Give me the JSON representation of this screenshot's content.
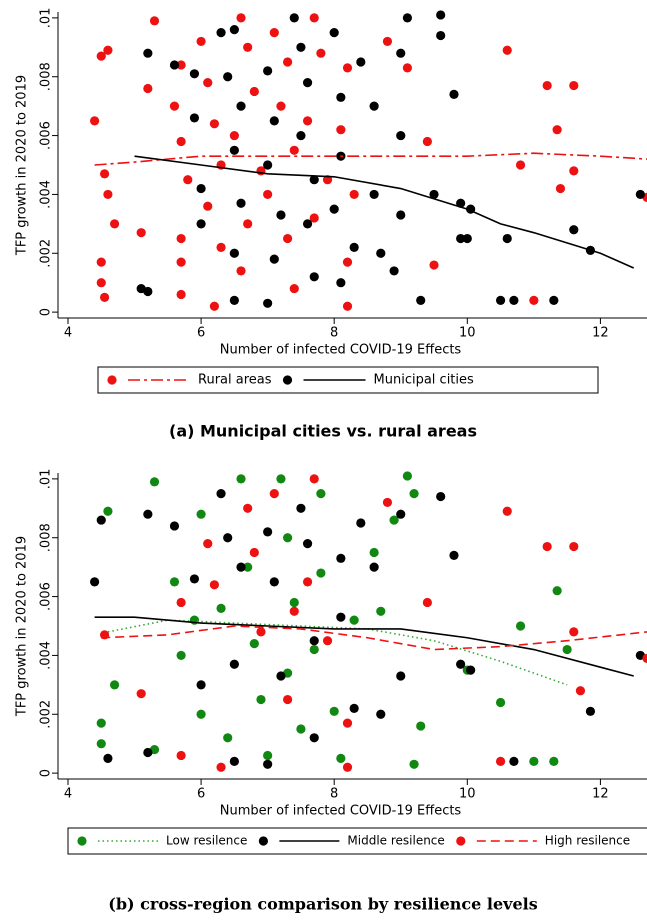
{
  "chart_data": [
    {
      "type": "scatter",
      "xlabel": "Number of infected COVID-19 Effects",
      "ylabel": "TFP growth in 2020 to 2019",
      "caption": "(a)  Municipal cities vs. rural areas",
      "xlim": [
        3.85,
        12.7
      ],
      "ylim": [
        -0.0002,
        0.0102
      ],
      "xticks": [
        4,
        6,
        8,
        10,
        12
      ],
      "yticks": [
        0,
        {
          "value": 0.002,
          "label": ".002"
        },
        {
          "value": 0.004,
          "label": ".004"
        },
        {
          "value": 0.006,
          "label": ".006"
        },
        {
          "value": 0.008,
          "label": ".008"
        },
        {
          "value": 0.01,
          "label": ".01"
        }
      ],
      "legend_position": "bottom",
      "series": [
        {
          "type": "scatter",
          "color": "#ee1111",
          "x": [
            4.4,
            4.5,
            4.6,
            4.55,
            4.5,
            4.5,
            4.55,
            4.6,
            4.7,
            5.3,
            5.2,
            5.1,
            5.7,
            5.6,
            5.7,
            5.8,
            5.7,
            5.7,
            5.7,
            6.0,
            6.1,
            6.2,
            6.3,
            6.1,
            6.3,
            6.2,
            6.6,
            6.7,
            6.8,
            6.5,
            6.9,
            6.7,
            6.6,
            7.1,
            7.3,
            7.2,
            7.4,
            7.0,
            7.3,
            7.4,
            7.7,
            7.8,
            7.6,
            7.9,
            7.7,
            8.2,
            8.1,
            8.3,
            8.2,
            8.2,
            8.8,
            9.1,
            9.4,
            9.5,
            10.6,
            10.8,
            11.0,
            11.2,
            11.35,
            11.4,
            11.6,
            11.6,
            12.7
          ],
          "values": [
            0.0065,
            0.0087,
            0.0089,
            0.0047,
            0.0017,
            0.001,
            0.0005,
            0.004,
            0.003,
            0.0099,
            0.0076,
            0.0027,
            0.0084,
            0.007,
            0.0058,
            0.0045,
            0.0025,
            0.0017,
            0.0006,
            0.0092,
            0.0078,
            0.0064,
            0.005,
            0.0036,
            0.0022,
            0.0002,
            0.01,
            0.009,
            0.0075,
            0.006,
            0.0048,
            0.003,
            0.0014,
            0.0095,
            0.0085,
            0.007,
            0.0055,
            0.004,
            0.0025,
            0.0008,
            0.01,
            0.0088,
            0.0065,
            0.0045,
            0.0032,
            0.0083,
            0.0062,
            0.004,
            0.0017,
            0.0002,
            0.0092,
            0.0083,
            0.0058,
            0.0016,
            0.0089,
            0.005,
            0.0004,
            0.0077,
            0.0062,
            0.0042,
            0.0077,
            0.0048,
            0.0039
          ]
        },
        {
          "type": "line",
          "name": "Rural areas",
          "color": "#ee1111",
          "style": "dashdot",
          "x": [
            4.4,
            5,
            6,
            7,
            8,
            9,
            10,
            11,
            12,
            12.7
          ],
          "values": [
            0.005,
            0.0051,
            0.0053,
            0.0053,
            0.0053,
            0.0053,
            0.0053,
            0.0054,
            0.0053,
            0.0052
          ]
        },
        {
          "type": "scatter",
          "color": "#000000",
          "x": [
            5.1,
            5.2,
            5.2,
            5.6,
            5.9,
            5.9,
            6.0,
            6.0,
            6.3,
            6.5,
            6.4,
            6.6,
            6.5,
            6.6,
            6.5,
            6.5,
            7.0,
            7.1,
            7.0,
            7.2,
            7.1,
            7.0,
            7.4,
            7.5,
            7.6,
            7.5,
            7.7,
            7.6,
            7.7,
            8.0,
            8.1,
            8.1,
            8.0,
            8.3,
            8.1,
            8.4,
            8.6,
            8.6,
            8.7,
            9.0,
            9.1,
            9.0,
            9.0,
            8.9,
            9.6,
            9.6,
            9.8,
            9.5,
            9.9,
            10.05,
            9.9,
            9.3,
            10.0,
            10.6,
            10.5,
            10.7,
            11.3,
            11.6,
            11.85,
            12.6
          ],
          "values": [
            0.0008,
            0.0007,
            0.0088,
            0.0084,
            0.0081,
            0.0066,
            0.0042,
            0.003,
            0.0095,
            0.0096,
            0.008,
            0.007,
            0.0055,
            0.0037,
            0.002,
            0.0004,
            0.0082,
            0.0065,
            0.005,
            0.0033,
            0.0018,
            0.0003,
            0.01,
            0.009,
            0.0078,
            0.006,
            0.0045,
            0.003,
            0.0012,
            0.0095,
            0.0073,
            0.0053,
            0.0035,
            0.0022,
            0.001,
            0.0085,
            0.007,
            0.004,
            0.002,
            0.0088,
            0.01,
            0.006,
            0.0033,
            0.0014,
            0.0101,
            0.0094,
            0.0074,
            0.004,
            0.0037,
            0.0035,
            0.0025,
            0.0004,
            0.0025,
            0.0025,
            0.0004,
            0.0004,
            0.0004,
            0.0028,
            0.0021,
            0.004
          ]
        },
        {
          "type": "line",
          "name": "Municipal cities",
          "color": "#000000",
          "style": "solid",
          "x": [
            5,
            6,
            7,
            8,
            9,
            10,
            10.5,
            11,
            12,
            12.5
          ],
          "values": [
            0.0053,
            0.005,
            0.0047,
            0.0046,
            0.0042,
            0.0035,
            0.003,
            0.0027,
            0.002,
            0.0015
          ]
        }
      ]
    },
    {
      "type": "scatter",
      "xlabel": "Number of infected COVID-19 Effects",
      "ylabel": "TFP growth in 2020 to 2019",
      "caption": "(b)  cross-region comparison by resilience levels",
      "xlim": [
        3.85,
        12.7
      ],
      "ylim": [
        -0.0002,
        0.0102
      ],
      "xticks": [
        4,
        6,
        8,
        10,
        12
      ],
      "yticks": [
        0,
        {
          "value": 0.002,
          "label": ".002"
        },
        {
          "value": 0.004,
          "label": ".004"
        },
        {
          "value": 0.006,
          "label": ".006"
        },
        {
          "value": 0.008,
          "label": ".008"
        },
        {
          "value": 0.01,
          "label": ".01"
        }
      ],
      "legend_position": "bottom",
      "series": [
        {
          "type": "scatter",
          "color": "#118811",
          "x": [
            4.6,
            4.5,
            4.5,
            4.7,
            5.3,
            5.3,
            5.6,
            5.7,
            5.9,
            6.0,
            6.0,
            6.3,
            6.4,
            6.6,
            6.7,
            6.8,
            6.9,
            7.0,
            7.2,
            7.3,
            7.4,
            7.3,
            7.5,
            7.8,
            7.8,
            7.7,
            8.0,
            8.1,
            8.3,
            8.6,
            8.7,
            8.9,
            9.1,
            9.2,
            9.3,
            9.2,
            10.0,
            10.8,
            11.0,
            11.3,
            11.35,
            11.5,
            10.5
          ],
          "values": [
            0.0089,
            0.0017,
            0.001,
            0.003,
            0.0099,
            0.0008,
            0.0065,
            0.004,
            0.0052,
            0.0088,
            0.002,
            0.0056,
            0.0012,
            0.01,
            0.007,
            0.0044,
            0.0025,
            0.0006,
            0.01,
            0.008,
            0.0058,
            0.0034,
            0.0015,
            0.0095,
            0.0068,
            0.0042,
            0.0021,
            0.0005,
            0.0052,
            0.0075,
            0.0055,
            0.0086,
            0.0101,
            0.0095,
            0.0016,
            0.0003,
            0.0035,
            0.005,
            0.0004,
            0.0004,
            0.0062,
            0.0042,
            0.0024
          ]
        },
        {
          "type": "line",
          "name": "Low resilence",
          "color": "#33aa33",
          "style": "dotted",
          "x": [
            4.6,
            5.5,
            6.5,
            7.5,
            8.5,
            9.5,
            10.5,
            11.5
          ],
          "values": [
            0.0048,
            0.0052,
            0.0051,
            0.005,
            0.0049,
            0.0045,
            0.0038,
            0.003
          ]
        },
        {
          "type": "scatter",
          "color": "#000000",
          "x": [
            4.4,
            4.5,
            4.6,
            5.2,
            5.2,
            5.6,
            5.9,
            6.0,
            6.3,
            6.4,
            6.6,
            6.5,
            6.5,
            7.0,
            7.1,
            7.2,
            7.0,
            7.5,
            7.6,
            7.7,
            7.7,
            8.1,
            8.1,
            8.3,
            8.4,
            8.6,
            8.7,
            9.0,
            9.0,
            9.6,
            9.8,
            9.9,
            10.05,
            10.7,
            11.85,
            12.6
          ],
          "values": [
            0.0065,
            0.0086,
            0.0005,
            0.0088,
            0.0007,
            0.0084,
            0.0066,
            0.003,
            0.0095,
            0.008,
            0.007,
            0.0037,
            0.0004,
            0.0082,
            0.0065,
            0.0033,
            0.0003,
            0.009,
            0.0078,
            0.0045,
            0.0012,
            0.0073,
            0.0053,
            0.0022,
            0.0085,
            0.007,
            0.002,
            0.0088,
            0.0033,
            0.0094,
            0.0074,
            0.0037,
            0.0035,
            0.0004,
            0.0021,
            0.004
          ]
        },
        {
          "type": "line",
          "name": "Middle resilence",
          "color": "#000000",
          "style": "solid",
          "x": [
            4.4,
            5,
            6,
            7,
            8,
            9,
            10,
            11,
            12,
            12.5
          ],
          "values": [
            0.0053,
            0.0053,
            0.0051,
            0.005,
            0.0049,
            0.0049,
            0.0046,
            0.0042,
            0.0036,
            0.0033
          ]
        },
        {
          "type": "scatter",
          "color": "#ee1111",
          "x": [
            4.55,
            5.1,
            5.7,
            5.7,
            6.1,
            6.2,
            6.3,
            6.7,
            6.8,
            6.9,
            7.1,
            7.3,
            7.4,
            7.7,
            7.6,
            7.9,
            8.2,
            8.2,
            8.8,
            9.4,
            10.6,
            10.5,
            11.2,
            11.6,
            11.6,
            11.7,
            12.7
          ],
          "values": [
            0.0047,
            0.0027,
            0.0058,
            0.0006,
            0.0078,
            0.0064,
            0.0002,
            0.009,
            0.0075,
            0.0048,
            0.0095,
            0.0025,
            0.0055,
            0.01,
            0.0065,
            0.0045,
            0.0017,
            0.0002,
            0.0092,
            0.0058,
            0.0089,
            0.0004,
            0.0077,
            0.0077,
            0.0048,
            0.0028,
            0.0039
          ]
        },
        {
          "type": "line",
          "name": "High resilence",
          "color": "#ee1111",
          "style": "dashed",
          "x": [
            4.5,
            5.5,
            6.5,
            7.5,
            8.5,
            9.5,
            10.5,
            11.5,
            12.7
          ],
          "values": [
            0.0046,
            0.0047,
            0.005,
            0.0049,
            0.0046,
            0.0042,
            0.0043,
            0.0045,
            0.0048
          ]
        }
      ]
    }
  ]
}
